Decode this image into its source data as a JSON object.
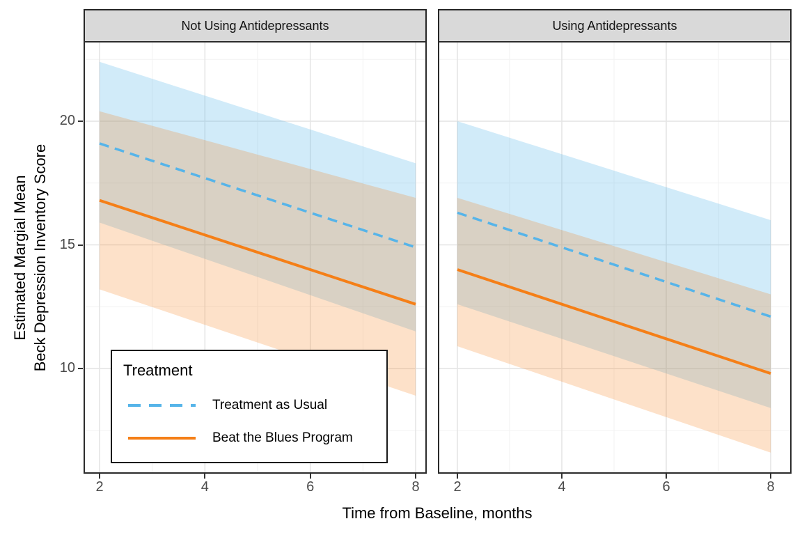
{
  "chart_data": {
    "type": "line",
    "description": "Faceted line chart of estimated marginal means with shaded confidence ribbons",
    "x": [
      2,
      8
    ],
    "x_ticks": [
      2,
      4,
      6,
      8
    ],
    "x_minor": [
      3,
      5,
      7
    ],
    "y_ticks": [
      20,
      15,
      10
    ],
    "y_minor": [
      22.5,
      17.5,
      12.5,
      7.5
    ],
    "xlim_approx": [
      1.7,
      8.3
    ],
    "ylim_approx": [
      5.8,
      23.2
    ],
    "grid": "on",
    "xlabel": "Time from Baseline, months",
    "ylabel_lines": [
      "Estimated Margial Mean",
      "Beck Depression Inventory Score"
    ],
    "legend": {
      "title": "Treatment",
      "position": "inside left panel, bottom-left",
      "items": [
        {
          "label": "Treatment as Usual",
          "linetype": "dashed",
          "color": "#56B4E9"
        },
        {
          "label": "Beat the Blues Program",
          "linetype": "solid",
          "color": "#F57F17"
        }
      ]
    },
    "colors": {
      "tau_line": "#56B4E9",
      "btb_line": "#F57F17",
      "tau_ribbon": "rgba(86,180,233,0.27)",
      "btb_ribbon": "rgba(245,127,23,0.23)",
      "strip_bg": "#D9D9D9",
      "panel_border": "#2b2b2b",
      "major_grid": "#E4E4E4",
      "minor_grid": "#F2F2F2",
      "tick_text": "#4a4a4a"
    },
    "facets": [
      {
        "label": "Not Using Antidepressants",
        "series": [
          {
            "name": "Treatment as Usual",
            "linetype": "dashed",
            "x": [
              2,
              8
            ],
            "y": [
              19.1,
              14.9
            ],
            "ci_lower": [
              15.9,
              11.5
            ],
            "ci_upper": [
              22.4,
              18.3
            ]
          },
          {
            "name": "Beat the Blues Program",
            "linetype": "solid",
            "x": [
              2,
              8
            ],
            "y": [
              16.8,
              12.6
            ],
            "ci_lower": [
              13.2,
              8.9
            ],
            "ci_upper": [
              20.4,
              16.9
            ]
          }
        ]
      },
      {
        "label": "Using Antidepressants",
        "series": [
          {
            "name": "Treatment as Usual",
            "linetype": "dashed",
            "x": [
              2,
              8
            ],
            "y": [
              16.3,
              12.1
            ],
            "ci_lower": [
              12.6,
              8.4
            ],
            "ci_upper": [
              20.0,
              16.0
            ]
          },
          {
            "name": "Beat the Blues Program",
            "linetype": "solid",
            "x": [
              2,
              8
            ],
            "y": [
              14.0,
              9.8
            ],
            "ci_lower": [
              10.9,
              6.6
            ],
            "ci_upper": [
              16.9,
              13.0
            ]
          }
        ]
      }
    ]
  }
}
